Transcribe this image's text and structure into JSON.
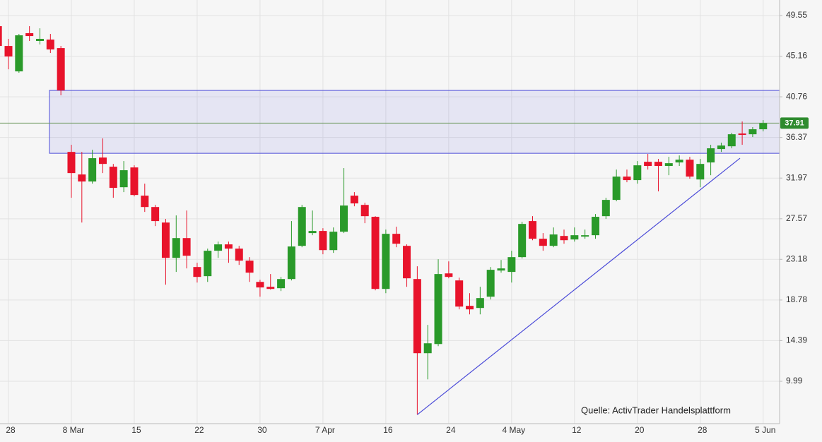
{
  "chart_data": {
    "type": "candlestick",
    "source": "Quelle: ActivTrader Handelsplattform",
    "categories": [
      null,
      "28",
      null,
      null,
      null,
      null,
      null,
      "8 Mar",
      null,
      null,
      null,
      null,
      null,
      "15",
      null,
      null,
      null,
      null,
      null,
      "22",
      null,
      null,
      null,
      null,
      null,
      "30",
      null,
      null,
      null,
      null,
      null,
      "7 Apr",
      null,
      null,
      null,
      null,
      null,
      "16",
      null,
      null,
      null,
      null,
      null,
      "24",
      null,
      null,
      null,
      null,
      null,
      "4 May",
      null,
      null,
      null,
      null,
      null,
      "12",
      null,
      null,
      null,
      null,
      null,
      "20",
      null,
      null,
      null,
      null,
      null,
      "28",
      null,
      null,
      null,
      null,
      null,
      "5 Jun"
    ],
    "open": [
      48.4,
      46.26,
      43.51,
      47.64,
      46.8,
      46.95,
      46.03,
      34.8,
      32.36,
      31.6,
      34.19,
      33.2,
      30.98,
      33.12,
      30.07,
      28.84,
      27.16,
      23.34,
      25.48,
      22.35,
      21.36,
      24.11,
      24.8,
      24.34,
      23.04,
      20.74,
      20.21,
      20.06,
      21.05,
      24.64,
      26.02,
      26.25,
      24.18,
      26.17,
      30.07,
      29.07,
      27.78,
      19.98,
      25.94,
      24.64,
      21.05,
      13.03,
      14.02,
      21.66,
      20.9,
      18.15,
      17.92,
      19.14,
      21.97,
      21.82,
      23.42,
      27.32,
      25.41,
      24.64,
      25.71,
      25.33,
      25.64,
      25.79,
      27.85,
      29.61,
      32.13,
      31.75,
      33.73,
      33.73,
      33.28,
      33.66,
      33.96,
      31.82,
      33.66,
      35.11,
      35.41,
      36.79,
      36.71,
      37.25
    ],
    "high": [
      48.56,
      47.03,
      47.56,
      48.4,
      48.17,
      47.56,
      46.26,
      35.57,
      34.8,
      35.03,
      36.26,
      33.5,
      33.81,
      33.35,
      31.37,
      29.07,
      27.55,
      27.93,
      28.46,
      22.81,
      24.34,
      25.1,
      25.1,
      24.64,
      23.42,
      20.97,
      21.59,
      21.28,
      27.32,
      29.07,
      28.46,
      26.55,
      26.63,
      33.05,
      30.45,
      29.3,
      27.85,
      26.4,
      26.71,
      24.8,
      22.43,
      16.09,
      23.19,
      22.96,
      21.2,
      19.52,
      20.21,
      22.35,
      23.11,
      24.11,
      27.24,
      27.85,
      26.02,
      26.63,
      26.4,
      26.63,
      26.4,
      28.08,
      29.84,
      32.89,
      32.89,
      33.81,
      34.58,
      34.04,
      34.27,
      34.42,
      34.27,
      34.04,
      35.57,
      35.8,
      36.87,
      38.09,
      37.48,
      38.24
    ],
    "low": [
      45.88,
      43.74,
      43.36,
      46.8,
      46.42,
      45.5,
      40.92,
      29.84,
      27.16,
      31.37,
      32.51,
      29.84,
      30.45,
      29.99,
      28.31,
      26.78,
      20.44,
      21.82,
      22.2,
      20.67,
      20.74,
      23.34,
      22.81,
      22.58,
      20.74,
      19.14,
      19.91,
      19.75,
      20.9,
      24.49,
      25.79,
      23.73,
      23.88,
      26.02,
      28.92,
      27.09,
      19.83,
      19.52,
      24.49,
      20.21,
      6.38,
      10.2,
      13.79,
      21.13,
      17.77,
      17.23,
      17.23,
      18.84,
      21.74,
      20.67,
      23.27,
      25.25,
      24.11,
      24.49,
      24.87,
      25.1,
      25.41,
      25.41,
      27.55,
      29.46,
      31.52,
      31.37,
      32.89,
      30.53,
      32.28,
      33.28,
      31.9,
      30.98,
      32.28,
      34.8,
      35.19,
      35.57,
      36.41,
      37.02
    ],
    "close": [
      46.26,
      45.12,
      47.41,
      47.33,
      47.03,
      45.88,
      41.45,
      32.51,
      31.6,
      34.12,
      33.5,
      30.91,
      32.82,
      30.14,
      28.84,
      27.32,
      23.34,
      25.48,
      23.57,
      21.28,
      24.11,
      24.8,
      24.34,
      23.04,
      21.74,
      20.14,
      19.98,
      21.05,
      24.57,
      28.84,
      26.25,
      24.18,
      26.17,
      29.0,
      29.23,
      27.85,
      19.98,
      25.94,
      24.87,
      21.13,
      13.03,
      14.1,
      21.59,
      21.28,
      18.07,
      17.77,
      18.99,
      22.05,
      22.2,
      23.42,
      27.01,
      25.41,
      24.64,
      25.87,
      25.25,
      25.79,
      25.79,
      27.78,
      29.61,
      32.13,
      31.75,
      33.35,
      33.28,
      33.28,
      33.58,
      33.96,
      32.13,
      33.5,
      35.19,
      35.49,
      36.71,
      36.64,
      37.25,
      37.91
    ],
    "up_color": "#2a9a2a",
    "down_color": "#e8132b",
    "ylim": [
      5.41,
      51.23
    ],
    "yticks": [
      9.99,
      14.39,
      18.78,
      23.18,
      27.57,
      31.97,
      36.37,
      40.76,
      45.16,
      49.55
    ],
    "grid": true,
    "last_price": 37.91,
    "last_price_color": "#2e8b2e",
    "zone": {
      "low": 34.65,
      "high": 41.45,
      "color": "#4a4ad8"
    },
    "trendline": {
      "start": 6.38,
      "end": 34.12,
      "color": "#4a4ad8"
    }
  }
}
